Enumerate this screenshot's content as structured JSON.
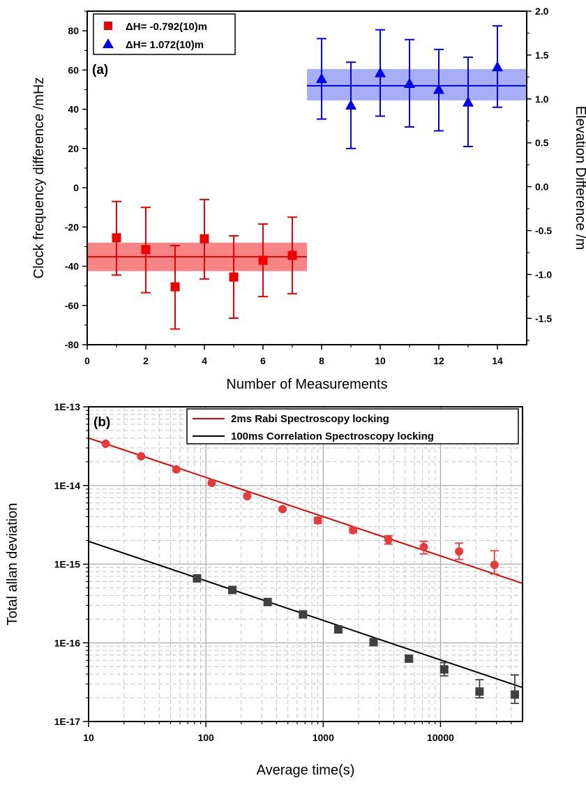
{
  "chart_data": [
    {
      "type": "scatter",
      "panel_label": "(a)",
      "xlabel": "Number of Measurements",
      "ylabel": "Clock frequency difference /mHz",
      "y2label": "Elevation Difference /m",
      "xlim": [
        0,
        15
      ],
      "ylim": [
        -80,
        90
      ],
      "y2lim": [
        -1.8,
        2.0
      ],
      "xticks": [
        0,
        2,
        4,
        6,
        8,
        10,
        12,
        14
      ],
      "yticks": [
        -80,
        -60,
        -40,
        -20,
        0,
        20,
        40,
        60,
        80
      ],
      "y2ticks": [
        "-1.5",
        "-1.0",
        "-0.5",
        "0.0",
        "0.5",
        "1.0",
        "1.5",
        "2.0"
      ],
      "legend_position": "top-left",
      "series": [
        {
          "name": "ΔH= -0.792(10)m",
          "marker": "square",
          "color": "#ee0000",
          "x": [
            1,
            2,
            3,
            4,
            5,
            6,
            7
          ],
          "y": [
            -25.5,
            -31.5,
            -50.5,
            -26,
            -45.5,
            -37,
            -34.5
          ],
          "err_low": [
            19,
            22,
            21.5,
            20.5,
            21,
            18.5,
            19.5
          ],
          "err_high": [
            18.5,
            21.5,
            21,
            20,
            21,
            18.5,
            19.5
          ],
          "mean": -35.2,
          "band": [
            -42.5,
            -28
          ],
          "mean_x_range": [
            0,
            7.5
          ]
        },
        {
          "name": "ΔH= 1.072(10)m",
          "marker": "triangle",
          "color": "#0000ee",
          "x": [
            8,
            9,
            10,
            11,
            12,
            13,
            14
          ],
          "y": [
            55.5,
            42,
            58.5,
            53,
            50,
            43.5,
            61.5
          ],
          "err_low": [
            20.5,
            22,
            22,
            22,
            21,
            22.5,
            20.5
          ],
          "err_high": [
            20.5,
            22,
            22,
            22.5,
            20.5,
            23,
            21
          ],
          "mean": 52,
          "band": [
            44.5,
            60.5
          ],
          "mean_x_range": [
            7.5,
            15
          ]
        }
      ]
    },
    {
      "type": "scatter",
      "panel_label": "(b)",
      "xlabel": "Average time(s)",
      "ylabel": "Total allan deviation",
      "xscale": "log",
      "yscale": "log",
      "xlim": [
        10,
        50000
      ],
      "ylim": [
        1e-17,
        1e-13
      ],
      "xticks": [
        "10",
        "100",
        "1000",
        "10000"
      ],
      "yticks": [
        "1E-17",
        "1E-16",
        "1E-15",
        "1E-14",
        "1E-13"
      ],
      "grid": true,
      "legend_position": "top-right",
      "series": [
        {
          "name": "2ms Rabi Spectroscopy locking",
          "marker": "circle",
          "color": "#e83a3a",
          "line_color": "#e00000",
          "fit": [
            [
              10,
              4e-14
            ],
            [
              50000,
              5.7e-16
            ]
          ],
          "x": [
            14,
            28,
            56,
            112,
            225,
            450,
            900,
            1800,
            3600,
            7200,
            14400,
            28800
          ],
          "y": [
            3.4e-14,
            2.35e-14,
            1.6e-14,
            1.08e-14,
            7.3e-15,
            5e-15,
            3.6e-15,
            2.7e-15,
            2.05e-15,
            1.65e-15,
            1.45e-15,
            9.8e-16
          ],
          "err_low": [
            0,
            0,
            0,
            0,
            0,
            0,
            3e-16,
            2e-16,
            2.5e-16,
            3e-16,
            3e-16,
            2.3e-16
          ],
          "err_high": [
            0,
            0,
            0,
            0,
            0,
            0,
            3e-16,
            2e-16,
            2.5e-16,
            3e-16,
            4e-16,
            5e-16
          ]
        },
        {
          "name": "100ms Correlation Spectroscopy locking",
          "marker": "square",
          "color": "#404040",
          "line_color": "#000000",
          "fit": [
            [
              10,
              1.95e-15
            ],
            [
              50000,
              2.7e-17
            ]
          ],
          "x": [
            84,
            168,
            336,
            672,
            1344,
            2688,
            5376,
            10752,
            21504,
            43008
          ],
          "y": [
            6.6e-16,
            4.7e-16,
            3.3e-16,
            2.3e-16,
            1.48e-16,
            1.02e-16,
            6.3e-17,
            4.6e-17,
            2.4e-17,
            2.2e-17
          ],
          "err_low": [
            0,
            0,
            0,
            0,
            0,
            0,
            6e-18,
            8e-18,
            4e-18,
            5e-18
          ],
          "err_high": [
            0,
            0,
            0,
            0,
            0,
            0,
            6e-18,
            1e-17,
            1e-17,
            1.7e-17
          ]
        }
      ]
    }
  ]
}
